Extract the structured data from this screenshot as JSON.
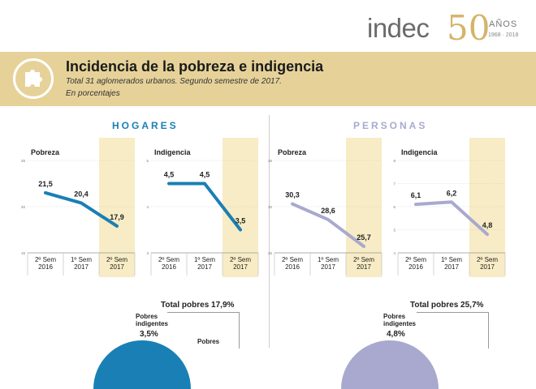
{
  "logo": {
    "text": "indec",
    "fifty": "50",
    "anos": "AÑOS",
    "years": "1968 · 2018"
  },
  "header": {
    "title": "Incidencia de la pobreza e indigencia",
    "subtitle": "Total 31 aglomerados urbanos. Segundo semestre de 2017.",
    "unit": "En porcentajes"
  },
  "icons": {
    "header": "puzzle-piece-icon"
  },
  "colors": {
    "hogares": "#1a7fb5",
    "personas": "#a9a9cf",
    "banner": "#e6d299",
    "highlight": "#f7ecc5"
  },
  "sections": [
    {
      "title": "HOGARES",
      "total": "Total pobres 17,9%",
      "sub_label_1": "Pobres",
      "sub_label_2": "indigentes",
      "sub_value": "3,5%",
      "pobres_label": "Pobres"
    },
    {
      "title": "PERSONAS",
      "total": "Total pobres 25,7%",
      "sub_label_1": "Pobres",
      "sub_label_2": "indigentes",
      "sub_value": "4,8%"
    }
  ],
  "chart_data": [
    {
      "type": "line",
      "title": "Pobreza",
      "group": "HOGARES",
      "categories": [
        [
          "2º Sem",
          "2016"
        ],
        [
          "1º Sem",
          "2017"
        ],
        [
          "2º Sem",
          "2017"
        ]
      ],
      "values": [
        21.5,
        20.4,
        17.9
      ],
      "labels": [
        "21,5",
        "20,4",
        "17,9"
      ],
      "ylim": [
        15,
        25
      ],
      "yticks": [
        15,
        20,
        25
      ],
      "highlight_index": 2,
      "color": "#1a7fb5"
    },
    {
      "type": "line",
      "title": "Indigencia",
      "group": "HOGARES",
      "categories": [
        [
          "2º Sem",
          "2016"
        ],
        [
          "1º Sem",
          "2017"
        ],
        [
          "2º Sem",
          "2017"
        ]
      ],
      "values": [
        4.5,
        4.5,
        3.5
      ],
      "labels": [
        "4,5",
        "4,5",
        "3,5"
      ],
      "ylim": [
        3,
        5
      ],
      "yticks": [
        3,
        4,
        5
      ],
      "highlight_index": 2,
      "color": "#1a7fb5"
    },
    {
      "type": "line",
      "title": "Pobreza",
      "group": "PERSONAS",
      "categories": [
        [
          "2º Sem",
          "2016"
        ],
        [
          "1º Sem",
          "2017"
        ],
        [
          "2º Sem",
          "2017"
        ]
      ],
      "values": [
        30.3,
        28.6,
        25.7
      ],
      "labels": [
        "30,3",
        "28,6",
        "25,7"
      ],
      "ylim": [
        25,
        35
      ],
      "yticks": [
        25,
        30,
        35
      ],
      "highlight_index": 2,
      "color": "#a9a9cf"
    },
    {
      "type": "line",
      "title": "Indigencia",
      "group": "PERSONAS",
      "categories": [
        [
          "2º Sem",
          "2016"
        ],
        [
          "1º Sem",
          "2017"
        ],
        [
          "2º Sem",
          "2017"
        ]
      ],
      "values": [
        6.1,
        6.2,
        4.8
      ],
      "labels": [
        "6,1",
        "6,2",
        "4,8"
      ],
      "ylim": [
        4,
        8
      ],
      "yticks": [
        4,
        5,
        6,
        7,
        8
      ],
      "highlight_index": 2,
      "color": "#a9a9cf"
    }
  ]
}
